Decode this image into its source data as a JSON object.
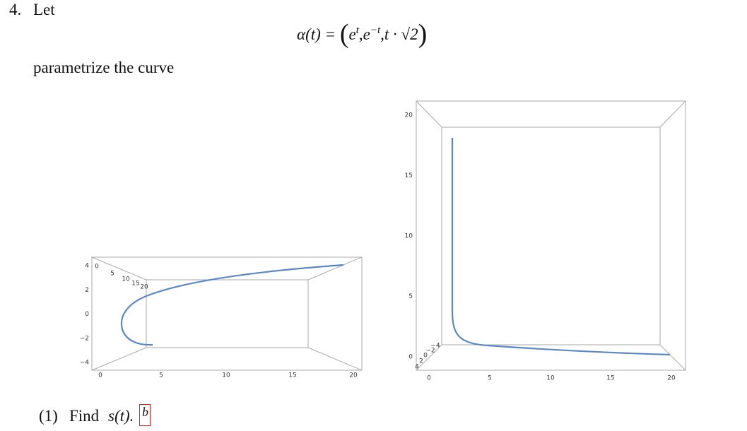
{
  "problem": {
    "number": "4.",
    "lead": "Let",
    "formula": {
      "lhs": "α(t) =",
      "open": "(",
      "terms": [
        {
          "base": "e",
          "sup": "t"
        },
        {
          "base": "e",
          "sup": "−t"
        },
        {
          "base": "t · √2"
        }
      ],
      "separator": ",",
      "close": ")"
    },
    "text": "parametrize the curve"
  },
  "plots": [
    {
      "left_ticks": [
        "4",
        "2",
        "0",
        "−2",
        "−4"
      ],
      "depth_ticks": [
        "0",
        "5",
        "10",
        "15",
        "20"
      ],
      "bottom_ticks": [
        "0",
        "5",
        "10",
        "15",
        "20"
      ]
    },
    {
      "left_ticks": [
        "20",
        "15",
        "10",
        "5",
        "0"
      ],
      "depth_ticks": [
        "−4",
        "−2",
        "0",
        "2",
        "4"
      ],
      "bottom_ticks": [
        "0",
        "5",
        "10",
        "15",
        "20"
      ]
    }
  ],
  "question": {
    "label": "(1)",
    "verb": "Find",
    "expr": "s(t).",
    "footnote": "b"
  }
}
